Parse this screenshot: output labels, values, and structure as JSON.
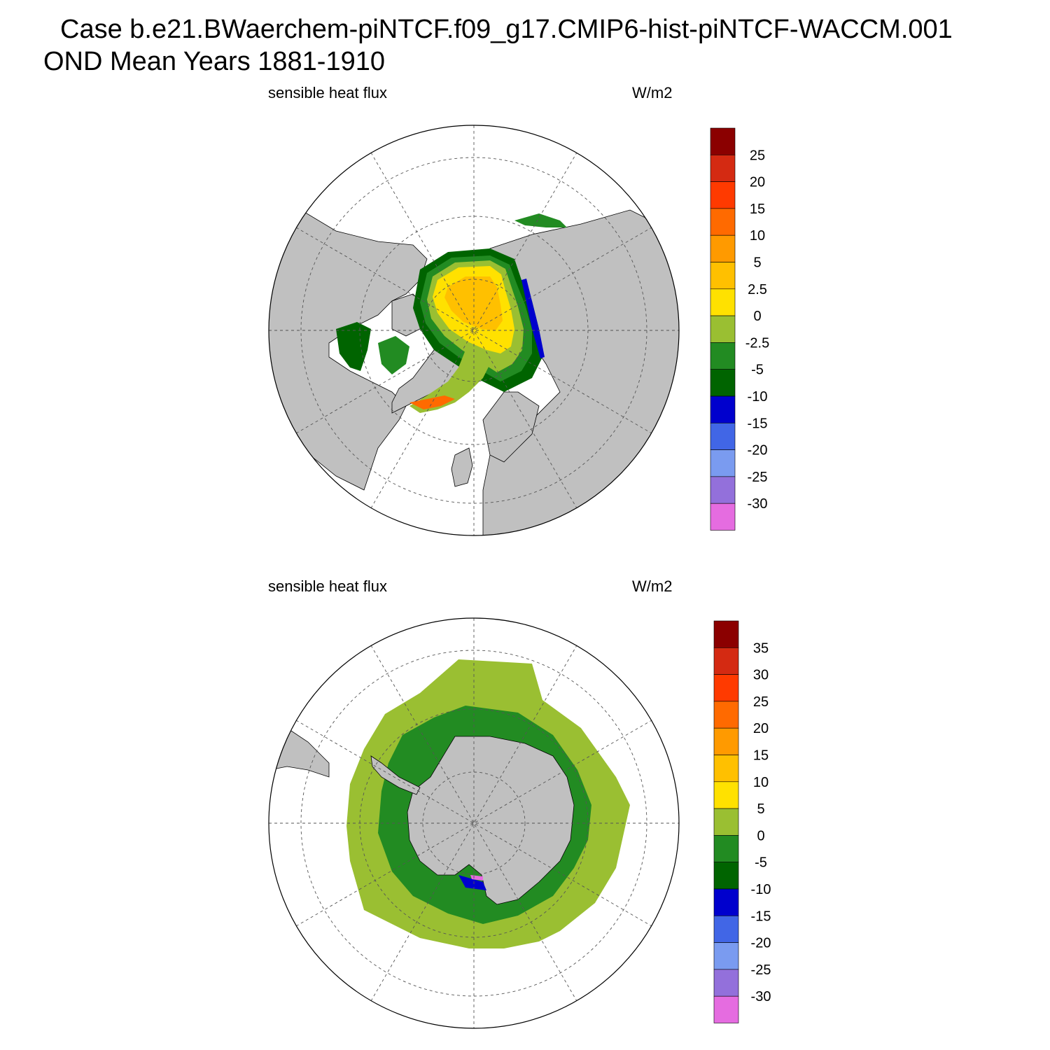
{
  "title": {
    "line1": "Case b.e21.BWaerchem-piNTCF.f09_g17.CMIP6-hist-piNTCF-WACCM.001",
    "line2": "OND Mean   Years 1881-1910"
  },
  "panels": [
    {
      "id": "north",
      "left_label": "sensible heat flux",
      "right_label": "W/m2",
      "colorbar": {
        "colors": [
          "#8b0000",
          "#d42a12",
          "#ff3a00",
          "#ff6a00",
          "#ff9a00",
          "#ffc000",
          "#ffe100",
          "#9abf32",
          "#228b22",
          "#006400",
          "#0000cd",
          "#4166e6",
          "#7a9bf0",
          "#9370db",
          "#e56ce0"
        ],
        "labels": [
          "25",
          "20",
          "15",
          "10",
          "5",
          "2.5",
          "0",
          "-2.5",
          "-5",
          "-10",
          "-15",
          "-20",
          "-25",
          "-30"
        ]
      }
    },
    {
      "id": "south",
      "left_label": "sensible heat flux",
      "right_label": "W/m2",
      "colorbar": {
        "colors": [
          "#8b0000",
          "#d42a12",
          "#ff3a00",
          "#ff6a00",
          "#ff9a00",
          "#ffc000",
          "#ffe100",
          "#9abf32",
          "#228b22",
          "#006400",
          "#0000cd",
          "#4166e6",
          "#7a9bf0",
          "#9370db",
          "#e56ce0"
        ],
        "labels": [
          "35",
          "30",
          "25",
          "20",
          "15",
          "10",
          "5",
          "0",
          "-5",
          "-10",
          "-15",
          "-20",
          "-25",
          "-30"
        ]
      }
    }
  ],
  "colors": {
    "land": "#c0c0c0",
    "ocean_missing": "#ffffff",
    "grid": "#555555"
  }
}
